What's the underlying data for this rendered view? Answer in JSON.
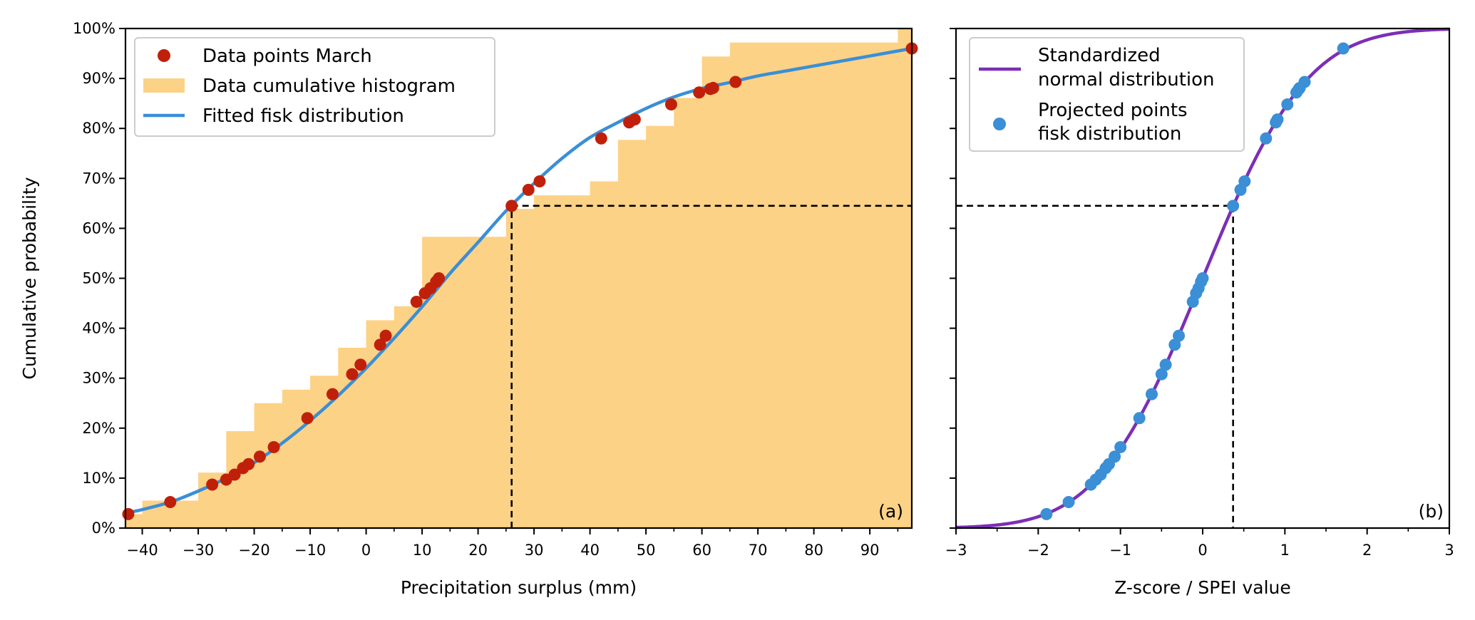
{
  "chart_data": [
    {
      "panel": "(a)",
      "type": "line",
      "xlabel": "Precipitation surplus (mm)",
      "ylabel": "Cumulative probability",
      "xlim": [
        -43,
        97.5
      ],
      "ylim": [
        0,
        1
      ],
      "x_ticks": [
        "−40",
        "−30",
        "−20",
        "−10",
        "0",
        "10",
        "20",
        "30",
        "40",
        "50",
        "60",
        "70",
        "80",
        "90"
      ],
      "x_tick_values": [
        -40,
        -30,
        -20,
        -10,
        0,
        10,
        20,
        30,
        40,
        50,
        60,
        70,
        80,
        90
      ],
      "x_minor_tick_values": [
        -35,
        -25,
        -15,
        -5,
        5,
        15,
        25,
        35,
        45,
        55,
        65,
        75,
        85,
        95
      ],
      "y_ticks": [
        "0%",
        "10%",
        "20%",
        "30%",
        "40%",
        "50%",
        "60%",
        "70%",
        "80%",
        "90%",
        "100%"
      ],
      "y_tick_values": [
        0,
        0.1,
        0.2,
        0.3,
        0.4,
        0.5,
        0.6,
        0.7,
        0.8,
        0.9,
        1.0
      ],
      "legend_position": "top-left",
      "legend": [
        {
          "label": "Data points March",
          "kind": "point"
        },
        {
          "label": "Data cumulative histogram",
          "kind": "patch"
        },
        {
          "label": "Fitted fisk distribution",
          "kind": "line"
        }
      ],
      "colors": {
        "points": "#c0200a",
        "histogram": "#fcd286",
        "fit": "#3a8fd6",
        "reference": "#000000"
      },
      "histogram": {
        "name": "Data cumulative histogram",
        "steps": [
          {
            "x0": -43,
            "x1": -40,
            "y": 0.028
          },
          {
            "x0": -40,
            "x1": -30,
            "y": 0.055
          },
          {
            "x0": -30,
            "x1": -25,
            "y": 0.111
          },
          {
            "x0": -25,
            "x1": -20,
            "y": 0.194
          },
          {
            "x0": -20,
            "x1": -15,
            "y": 0.25
          },
          {
            "x0": -15,
            "x1": -10,
            "y": 0.277
          },
          {
            "x0": -10,
            "x1": -5,
            "y": 0.305
          },
          {
            "x0": -5,
            "x1": 0,
            "y": 0.361
          },
          {
            "x0": 0,
            "x1": 5,
            "y": 0.416
          },
          {
            "x0": 5,
            "x1": 10,
            "y": 0.444
          },
          {
            "x0": 10,
            "x1": 20,
            "y": 0.583
          },
          {
            "x0": 20,
            "x1": 25,
            "y": 0.583
          },
          {
            "x0": 25,
            "x1": 30,
            "y": 0.639
          },
          {
            "x0": 30,
            "x1": 40,
            "y": 0.666
          },
          {
            "x0": 40,
            "x1": 45,
            "y": 0.694
          },
          {
            "x0": 45,
            "x1": 50,
            "y": 0.777
          },
          {
            "x0": 50,
            "x1": 55,
            "y": 0.805
          },
          {
            "x0": 55,
            "x1": 60,
            "y": 0.861
          },
          {
            "x0": 60,
            "x1": 65,
            "y": 0.944
          },
          {
            "x0": 65,
            "x1": 95,
            "y": 0.972
          },
          {
            "x0": 95,
            "x1": 97.5,
            "y": 1.0
          }
        ]
      },
      "points": {
        "name": "Data points March",
        "x": [
          -42.5,
          -35,
          -27.5,
          -25,
          -23.5,
          -22,
          -21,
          -19,
          -16.5,
          -10.5,
          -6,
          -2.5,
          -1,
          2.5,
          3.5,
          9,
          10.5,
          11.5,
          12.5,
          13,
          26,
          29,
          31,
          42,
          47,
          48,
          54.5,
          59.5,
          61.5,
          62,
          66,
          97.5
        ],
        "y": [
          0.028,
          0.052,
          0.087,
          0.097,
          0.107,
          0.12,
          0.128,
          0.143,
          0.162,
          0.22,
          0.268,
          0.308,
          0.327,
          0.367,
          0.385,
          0.453,
          0.47,
          0.48,
          0.493,
          0.5,
          0.645,
          0.677,
          0.694,
          0.78,
          0.812,
          0.818,
          0.848,
          0.872,
          0.879,
          0.881,
          0.893,
          0.96
        ]
      },
      "fit_curve": {
        "name": "Fitted fisk distribution",
        "x": [
          -43,
          -40,
          -35,
          -30,
          -25,
          -20,
          -15,
          -10,
          -5,
          0,
          5,
          10,
          15,
          20,
          25,
          30,
          35,
          40,
          45,
          50,
          55,
          60,
          65,
          70,
          75,
          80,
          85,
          90,
          97.5
        ],
        "y": [
          0.03,
          0.037,
          0.052,
          0.074,
          0.1,
          0.131,
          0.17,
          0.215,
          0.265,
          0.32,
          0.38,
          0.443,
          0.51,
          0.572,
          0.635,
          0.69,
          0.74,
          0.782,
          0.812,
          0.84,
          0.863,
          0.88,
          0.892,
          0.905,
          0.915,
          0.925,
          0.935,
          0.945,
          0.96
        ]
      },
      "reference_lines": {
        "x": 26,
        "y": 0.645
      },
      "note": "(a)"
    },
    {
      "panel": "(b)",
      "type": "line",
      "xlabel": "Z-score / SPEI value",
      "ylabel": "",
      "xlim": [
        -3,
        3
      ],
      "ylim": [
        0,
        1
      ],
      "x_ticks": [
        "−3",
        "−2",
        "−1",
        "0",
        "1",
        "2",
        "3"
      ],
      "x_tick_values": [
        -3,
        -2,
        -1,
        0,
        1,
        2,
        3
      ],
      "x_minor_tick_values": [
        -2.5,
        -1.5,
        -0.5,
        0.5,
        1.5,
        2.5
      ],
      "y_tick_values": [
        0,
        0.1,
        0.2,
        0.3,
        0.4,
        0.5,
        0.6,
        0.7,
        0.8,
        0.9,
        1.0
      ],
      "legend_position": "top-left",
      "legend": [
        {
          "label": [
            "Standardized",
            "normal distribution"
          ],
          "kind": "line"
        },
        {
          "label": [
            "Projected points",
            "fisk distribution"
          ],
          "kind": "point"
        }
      ],
      "colors": {
        "normal": "#7b2fb5",
        "points": "#3a8fd6",
        "reference": "#000000"
      },
      "normal_curve": {
        "name": "Standardized normal distribution",
        "function": "normal_cdf",
        "x_range": [
          -3,
          3
        ]
      },
      "points": {
        "name": "Projected points fisk distribution",
        "x": [
          -1.9,
          -1.63,
          -1.36,
          -1.3,
          -1.24,
          -1.18,
          -1.14,
          -1.07,
          -1,
          -0.77,
          -0.62,
          -0.5,
          -0.45,
          -0.34,
          -0.29,
          -0.12,
          -0.08,
          -0.05,
          -0.02,
          0,
          0.37,
          0.46,
          0.51,
          0.77,
          0.89,
          0.91,
          1.03,
          1.14,
          1.17,
          1.18,
          1.24,
          1.71
        ],
        "y": [
          0.028,
          0.052,
          0.087,
          0.097,
          0.107,
          0.12,
          0.128,
          0.143,
          0.162,
          0.22,
          0.268,
          0.308,
          0.327,
          0.367,
          0.385,
          0.453,
          0.47,
          0.48,
          0.493,
          0.5,
          0.645,
          0.677,
          0.694,
          0.78,
          0.812,
          0.818,
          0.848,
          0.872,
          0.879,
          0.881,
          0.893,
          0.96
        ]
      },
      "reference_lines": {
        "x": 0.37,
        "y": 0.645
      },
      "note": "(b)"
    }
  ]
}
